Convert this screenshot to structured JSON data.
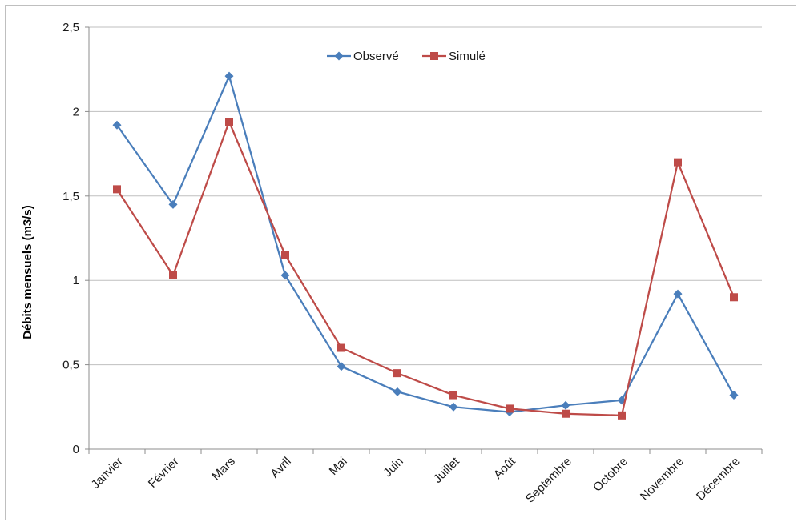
{
  "chart_data": {
    "type": "line",
    "categories": [
      "Janvier",
      "Février",
      "Mars",
      "Avril",
      "Mai",
      "Juin",
      "Juillet",
      "Août",
      "Septembre",
      "Octobre",
      "Novembre",
      "Décembre"
    ],
    "series": [
      {
        "name": "Observé",
        "color": "#4a7ebb",
        "marker": "diamond",
        "values": [
          1.92,
          1.45,
          2.21,
          1.03,
          0.49,
          0.34,
          0.25,
          0.22,
          0.26,
          0.29,
          0.92,
          0.32
        ]
      },
      {
        "name": "Simulé",
        "color": "#be4b48",
        "marker": "square",
        "values": [
          1.54,
          1.03,
          1.94,
          1.15,
          0.6,
          0.45,
          0.32,
          0.24,
          0.21,
          0.2,
          1.7,
          0.9
        ]
      }
    ],
    "title": "",
    "xlabel": "",
    "ylabel": "Débits mensuels (m3/s)",
    "ylim": [
      0,
      2.5
    ],
    "yticks": [
      "0",
      "0,5",
      "1",
      "1,5",
      "2",
      "2,5"
    ],
    "ytick_values": [
      0,
      0.5,
      1,
      1.5,
      2,
      2.5
    ],
    "grid": "horizontal",
    "legend_position": "top-center"
  }
}
